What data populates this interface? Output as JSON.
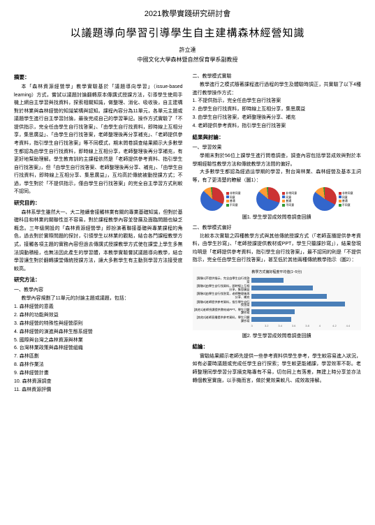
{
  "conference": "2021教學實踐研究研討會",
  "title": "以議題導向學習引導學生自主建構森林經營知識",
  "author": "許立達",
  "affiliation": "中國文化大學森林暨自然保育學系副教授",
  "left": {
    "abstract_heading": "摘要：",
    "abstract": "本「森林資源經營學」教學實驗基於「議題導向學習」（issue-based learning）方式，嘗試以議題討論翻轉原本傳講式授課方法，引導學生使用手機上網自主學習與找資料，探索相關知識，做整理、消化、吸收後，自主建構對於林業與森林經營的知識架構與認知。課程內容分為11單元，各單元主題或議題學生進行自主學習討論，最後完成自己的學習筆記。操作方式實驗了「不提供指示，完全任由學生自行找答案」、「由學生自行找資料，即時線上互相分享，集思廣益」、「由學生自行找答案，老師整理後再分享補充」、「老師提供參考資料，指引學生自行找答案」等不同模式，期末問卷調查結果顯示大多數學生都認為由學生自行找資料，即時線上互相分享，老師整理後再分享補充，有更好地幫助理解。學生教育訓的主課程依然是「老師提供參考資料、指引學生自行找答案」，但「由學生自行找答案、老師整理後再分享、補充」、「由學生自行找資料，即時線上互相分享、集思廣益」，互均高於傳統被動授課方式；不過，學生對於「不提供指示，僅由學生自行找答案」的完全自主學習方式則較不認同。",
    "purpose_heading": "研究目的：",
    "purpose": "森林系學生雖然大一、大二陸續會接觸林業有關的專業基礎知識，但對於基礎科目和林業的關聯性並不容易，對於課程教學內容並發展及面臨問題也缺乏概念。三年級開設的「森林資源經營學」即扮演著聯接基礎與專業課程的角色，過去對於實際問題的探討，引領學生以林業的觀點，結合各門課程教學方式，接觸各項主題的實務內容但過去傳講式授課教學方式使在課堂上學生多無法調動積極，也無法因此產生的學習體，本教學實驗嘗試議題導向教學，結合學習讓生對於翻轉課堂傳統授課方法，讓大多數學生有主動到學習方法接受度較高。",
    "method_heading": "研究方法：",
    "content_heading": "一、教學內容",
    "content_intro": "教學內容規劃了11單元的討論主題或議題，包括：",
    "units": [
      "1. 森林經營的意義",
      "2. 森林的功能與效益",
      "3. 森林經營的特殊性與經營原則",
      "4. 森林經營的演進與森林生態系經營",
      "5. 國際與台灣之森林資源與林業",
      "6. 台灣林業政策與森林經營組織",
      "7. 森林區劃",
      "8. 森林作業法",
      "9. 森林經營計畫",
      "10. 森林資源調查",
      "11. 森林資源評價"
    ]
  },
  "right": {
    "exp_heading": "二、教學模式實驗",
    "exp_intro": "教學進行之模式隨著課程進行過程的學生及體驗時調正，共實驗了以下4種進行教學操作方式：",
    "modes": [
      "1. 不提供指示，完全任由學生自行找答案",
      "2. 由學生自行找資料，即時線上互相分享，集思廣益",
      "3. 由學生自行找答案，老師整理後再分享、補充",
      "4. 老師提供參考資料，指引學生自行找答案"
    ],
    "results_heading": "結果與討論：",
    "survey_heading": "一、學習效果",
    "survey_text": "學期末對於56位上課學生進行問卷調查，調查內容包括學習成效與對於本學期經驗性教學方法和傳統教學方法間的偏好。",
    "survey_text2": "大多數學生都認為經過這學期的學習，對台灣林業、森林經營及基本主詞等，有了更清楚的瞭解（圖1）：",
    "pies": {
      "size": 34,
      "colors": {
        "strongly_agree": "#cc3333",
        "agree": "#3366cc",
        "neutral": "#ff9933",
        "disagree": "#339933"
      },
      "legend_labels": [
        "非常同意",
        "同意",
        "普通",
        "不同意"
      ],
      "data": [
        {
          "sa": 0.32,
          "a": 0.55,
          "n": 0.11,
          "d": 0.02
        },
        {
          "sa": 0.3,
          "a": 0.56,
          "n": 0.12,
          "d": 0.02
        },
        {
          "sa": 0.33,
          "a": 0.52,
          "n": 0.13,
          "d": 0.02
        }
      ]
    },
    "fig1_caption": "圖1. 學生學習成效問卷調查回饋",
    "pref_heading": "二、教學模式偏好",
    "pref_text": "比較本次實驗之四種教學方式與其他傳統授課方式（「老師直播提供參考資料，由學生抄寫」、「老師授課提供教材或PPT，學生只聽課抄寫」），結果發現均明是「老師提供參考資料，指引學生自行找答案」，最不認同的則是「不提供指示，完全任由學生自行找答案」，甚至低於其他兩種傳統教學指示（圖2）：",
    "bars": {
      "title": "教學方式偏好程度平均值(1~5分)",
      "title_fontsize": 5,
      "color": "#4a7fb8",
      "xmax": 4.5,
      "xticks": [
        "3",
        "3.2",
        "3.4",
        "3.6",
        "3.8",
        "4",
        "4.2",
        "4.4"
      ],
      "items": [
        {
          "label": "[實驗1]不提供指示，完全由學生自行找答案",
          "value": 3.45
        },
        {
          "label": "[實驗2]由學生自行找資料，即時線上互相分享，集思廣益",
          "value": 3.85
        },
        {
          "label": "[實驗3]由學生自行找答案，老師整理後再分享、補充",
          "value": 4.05
        },
        {
          "label": "[實驗4]老師提供參考資料，指引學生自行找答案",
          "value": 4.3
        },
        {
          "label": "[其他1]老師授課提供教材或PPT，學生只聽課抄寫",
          "value": 3.6
        },
        {
          "label": "[其他2]老師直播提供參考資料，學生只聽課抄寫",
          "value": 3.55
        }
      ]
    },
    "fig2_caption": "圖2. 學生學習成效問卷調查回饋",
    "conclusion_heading": "結論：",
    "conclusion": "實驗結果顯示老師先提供一些參考資料供學生參考，學生較容易進入狀況，如有必要時議題或完成任學生自行探索；學生較更能補課，學習效率不彰。老師整理同學學習分享摘克略專有不易，切勿同上有落差，無建上時分享並亦法轉個教室實施，以手機而言，做於覺效果較凡、成效故排解。"
  }
}
